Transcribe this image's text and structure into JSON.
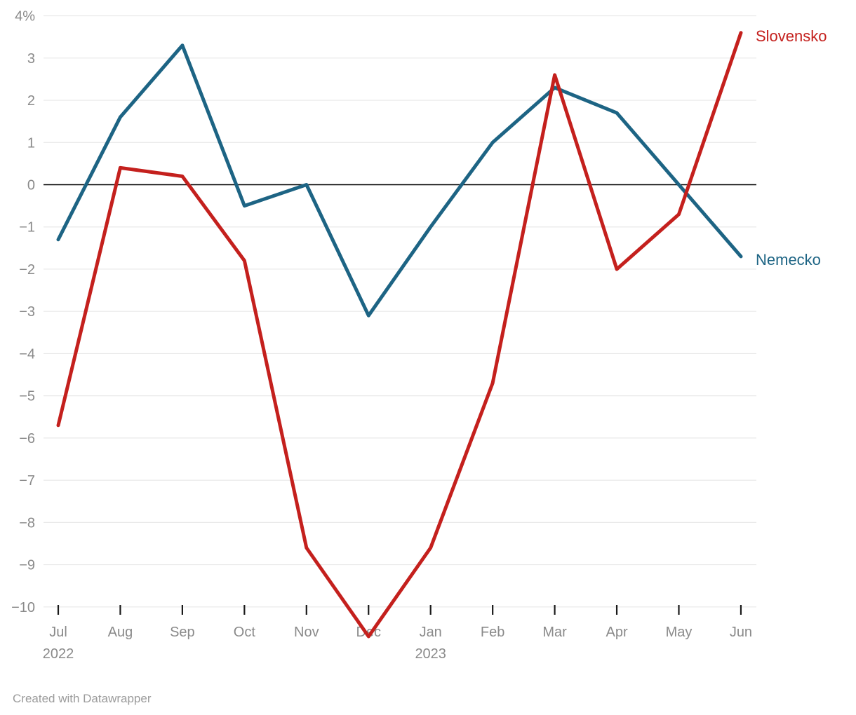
{
  "chart_data": {
    "type": "line",
    "title": "",
    "x_axis": {
      "ticks": [
        "Jul",
        "Aug",
        "Sep",
        "Oct",
        "Nov",
        "Dec",
        "Jan",
        "Feb",
        "Mar",
        "Apr",
        "May",
        "Jun"
      ],
      "year_labels": [
        {
          "tick_index": 0,
          "label": "2022"
        },
        {
          "tick_index": 6,
          "label": "2023"
        }
      ]
    },
    "y_axis": {
      "range": [
        -10,
        4
      ],
      "unit": "%",
      "ticks": [
        {
          "value": 4,
          "label": "4%"
        },
        {
          "value": 3,
          "label": "3"
        },
        {
          "value": 2,
          "label": "2"
        },
        {
          "value": 1,
          "label": "1"
        },
        {
          "value": 0,
          "label": "0"
        },
        {
          "value": -1,
          "label": "−1"
        },
        {
          "value": -2,
          "label": "−2"
        },
        {
          "value": -3,
          "label": "−3"
        },
        {
          "value": -4,
          "label": "−4"
        },
        {
          "value": -5,
          "label": "−5"
        },
        {
          "value": -6,
          "label": "−6"
        },
        {
          "value": -7,
          "label": "−7"
        },
        {
          "value": -8,
          "label": "−8"
        },
        {
          "value": -9,
          "label": "−9"
        },
        {
          "value": -10,
          "label": "−10"
        }
      ]
    },
    "series": [
      {
        "name": "Slovensko",
        "color": "#c4201d",
        "values": [
          -5.7,
          0.4,
          0.2,
          -1.8,
          -8.6,
          -10.7,
          -8.6,
          -4.7,
          2.6,
          -2.0,
          -0.7,
          3.6
        ]
      },
      {
        "name": "Nemecko",
        "color": "#1d6484",
        "values": [
          -1.3,
          1.6,
          3.3,
          -0.5,
          0.0,
          -3.1,
          -1.0,
          1.0,
          2.3,
          1.7,
          0.0,
          -1.7
        ]
      }
    ],
    "grid": true,
    "zero_line": true,
    "legend_position": "end-of-line-labels"
  },
  "footer": {
    "credit": "Created with Datawrapper"
  },
  "colors": {
    "axis_text": "#8a8a8a",
    "grid": "#e8e8e8",
    "zero_line": "#000000",
    "tick_mark": "#1a1a1a"
  }
}
